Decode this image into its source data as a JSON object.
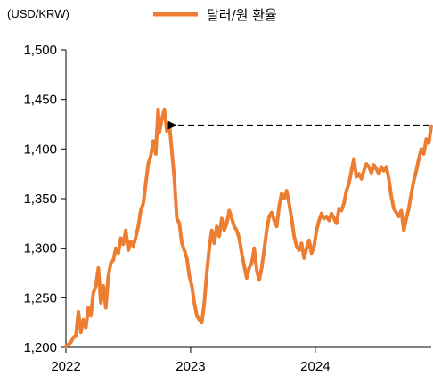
{
  "chart_data": {
    "type": "line",
    "unit_label": "(USD/KRW)",
    "series": [
      {
        "name": "달러/원 환율",
        "color": "#ED7D31",
        "points": [
          [
            2022.0,
            1201
          ],
          [
            2022.02,
            1203
          ],
          [
            2022.04,
            1205
          ],
          [
            2022.06,
            1210
          ],
          [
            2022.08,
            1212
          ],
          [
            2022.1,
            1236
          ],
          [
            2022.12,
            1215
          ],
          [
            2022.14,
            1228
          ],
          [
            2022.16,
            1220
          ],
          [
            2022.18,
            1240
          ],
          [
            2022.2,
            1232
          ],
          [
            2022.22,
            1255
          ],
          [
            2022.24,
            1262
          ],
          [
            2022.26,
            1280
          ],
          [
            2022.28,
            1245
          ],
          [
            2022.3,
            1262
          ],
          [
            2022.32,
            1240
          ],
          [
            2022.34,
            1272
          ],
          [
            2022.36,
            1285
          ],
          [
            2022.38,
            1288
          ],
          [
            2022.4,
            1300
          ],
          [
            2022.42,
            1295
          ],
          [
            2022.44,
            1310
          ],
          [
            2022.46,
            1304
          ],
          [
            2022.48,
            1318
          ],
          [
            2022.5,
            1298
          ],
          [
            2022.52,
            1307
          ],
          [
            2022.54,
            1302
          ],
          [
            2022.56,
            1311
          ],
          [
            2022.58,
            1322
          ],
          [
            2022.6,
            1338
          ],
          [
            2022.62,
            1345
          ],
          [
            2022.64,
            1365
          ],
          [
            2022.66,
            1385
          ],
          [
            2022.68,
            1393
          ],
          [
            2022.7,
            1408
          ],
          [
            2022.72,
            1395
          ],
          [
            2022.74,
            1440
          ],
          [
            2022.75,
            1417
          ],
          [
            2022.77,
            1430
          ],
          [
            2022.79,
            1440
          ],
          [
            2022.81,
            1418
          ],
          [
            2022.83,
            1425
          ],
          [
            2022.85,
            1398
          ],
          [
            2022.87,
            1370
          ],
          [
            2022.89,
            1330
          ],
          [
            2022.91,
            1325
          ],
          [
            2022.93,
            1305
          ],
          [
            2022.95,
            1298
          ],
          [
            2022.97,
            1290
          ],
          [
            2022.99,
            1272
          ],
          [
            2023.01,
            1262
          ],
          [
            2023.03,
            1245
          ],
          [
            2023.05,
            1232
          ],
          [
            2023.07,
            1228
          ],
          [
            2023.09,
            1225
          ],
          [
            2023.11,
            1245
          ],
          [
            2023.13,
            1275
          ],
          [
            2023.15,
            1300
          ],
          [
            2023.17,
            1318
          ],
          [
            2023.19,
            1305
          ],
          [
            2023.21,
            1322
          ],
          [
            2023.23,
            1312
          ],
          [
            2023.25,
            1330
          ],
          [
            2023.27,
            1318
          ],
          [
            2023.29,
            1325
          ],
          [
            2023.31,
            1338
          ],
          [
            2023.33,
            1330
          ],
          [
            2023.35,
            1322
          ],
          [
            2023.37,
            1318
          ],
          [
            2023.39,
            1310
          ],
          [
            2023.41,
            1295
          ],
          [
            2023.43,
            1282
          ],
          [
            2023.45,
            1270
          ],
          [
            2023.47,
            1280
          ],
          [
            2023.49,
            1285
          ],
          [
            2023.51,
            1300
          ],
          [
            2023.53,
            1278
          ],
          [
            2023.55,
            1268
          ],
          [
            2023.57,
            1280
          ],
          [
            2023.59,
            1298
          ],
          [
            2023.61,
            1318
          ],
          [
            2023.63,
            1332
          ],
          [
            2023.65,
            1336
          ],
          [
            2023.67,
            1328
          ],
          [
            2023.69,
            1322
          ],
          [
            2023.71,
            1342
          ],
          [
            2023.73,
            1355
          ],
          [
            2023.75,
            1350
          ],
          [
            2023.77,
            1358
          ],
          [
            2023.79,
            1345
          ],
          [
            2023.81,
            1330
          ],
          [
            2023.83,
            1312
          ],
          [
            2023.85,
            1302
          ],
          [
            2023.87,
            1298
          ],
          [
            2023.89,
            1305
          ],
          [
            2023.91,
            1290
          ],
          [
            2023.93,
            1300
          ],
          [
            2023.95,
            1308
          ],
          [
            2023.97,
            1295
          ],
          [
            2023.99,
            1302
          ],
          [
            2024.01,
            1318
          ],
          [
            2024.03,
            1328
          ],
          [
            2024.05,
            1335
          ],
          [
            2024.07,
            1330
          ],
          [
            2024.09,
            1332
          ],
          [
            2024.11,
            1328
          ],
          [
            2024.13,
            1335
          ],
          [
            2024.15,
            1330
          ],
          [
            2024.17,
            1325
          ],
          [
            2024.19,
            1340
          ],
          [
            2024.21,
            1338
          ],
          [
            2024.23,
            1345
          ],
          [
            2024.25,
            1358
          ],
          [
            2024.27,
            1365
          ],
          [
            2024.29,
            1378
          ],
          [
            2024.31,
            1390
          ],
          [
            2024.33,
            1372
          ],
          [
            2024.35,
            1375
          ],
          [
            2024.37,
            1370
          ],
          [
            2024.39,
            1378
          ],
          [
            2024.41,
            1385
          ],
          [
            2024.43,
            1382
          ],
          [
            2024.45,
            1376
          ],
          [
            2024.47,
            1384
          ],
          [
            2024.49,
            1380
          ],
          [
            2024.51,
            1375
          ],
          [
            2024.53,
            1382
          ],
          [
            2024.55,
            1378
          ],
          [
            2024.57,
            1382
          ],
          [
            2024.59,
            1370
          ],
          [
            2024.61,
            1352
          ],
          [
            2024.63,
            1340
          ],
          [
            2024.65,
            1336
          ],
          [
            2024.67,
            1332
          ],
          [
            2024.69,
            1338
          ],
          [
            2024.71,
            1318
          ],
          [
            2024.73,
            1330
          ],
          [
            2024.75,
            1340
          ],
          [
            2024.77,
            1355
          ],
          [
            2024.79,
            1368
          ],
          [
            2024.81,
            1378
          ],
          [
            2024.83,
            1390
          ],
          [
            2024.85,
            1400
          ],
          [
            2024.87,
            1395
          ],
          [
            2024.89,
            1410
          ],
          [
            2024.91,
            1406
          ],
          [
            2024.93,
            1423
          ]
        ]
      }
    ],
    "x_ticks": [
      "2022",
      "2023",
      "2024"
    ],
    "x_tick_values": [
      2022,
      2023,
      2024
    ],
    "y_ticks": [
      "1,200",
      "1,250",
      "1,300",
      "1,350",
      "1,400",
      "1,450",
      "1,500"
    ],
    "y_tick_values": [
      1200,
      1250,
      1300,
      1350,
      1400,
      1450,
      1500
    ],
    "xlim": [
      2022.0,
      2024.93
    ],
    "ylim": [
      1200,
      1500
    ],
    "grid": false,
    "legend_position": "top-center",
    "annotation": {
      "type": "dashed-arrow",
      "y": 1424,
      "from_x": 2024.93,
      "to_x": 2022.79
    }
  }
}
